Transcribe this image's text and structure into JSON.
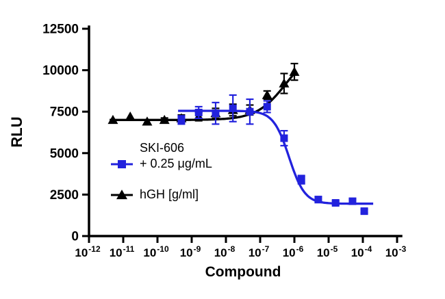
{
  "chart_data": {
    "type": "line",
    "title": "",
    "xlabel": "Compound",
    "ylabel": "RLU",
    "x_scale": "log10",
    "xlim_exp": [
      -12,
      -3
    ],
    "ylim": [
      0,
      12500
    ],
    "yticks": [
      0,
      2500,
      5000,
      7500,
      10000,
      12500
    ],
    "xticks_exp": [
      -12,
      -11,
      -10,
      -9,
      -8,
      -7,
      -6,
      -5,
      -4,
      -3
    ],
    "axis_color": "#000000",
    "grid": false,
    "legend_position": "inside-left",
    "series": [
      {
        "name": "SKI-606 + 0.25 μg/mL",
        "color": "#2222DD",
        "marker": "square",
        "points": [
          {
            "x": 5e-10,
            "y": 7000,
            "err": 250
          },
          {
            "x": 1.6e-09,
            "y": 7450,
            "err": 350
          },
          {
            "x": 5e-09,
            "y": 7400,
            "err": 650
          },
          {
            "x": 1.6e-08,
            "y": 7700,
            "err": 800
          },
          {
            "x": 5e-08,
            "y": 7500,
            "err": 750
          },
          {
            "x": 1.6e-07,
            "y": 7800,
            "err": 350
          },
          {
            "x": 5e-07,
            "y": 5900,
            "err": 450
          },
          {
            "x": 1.6e-06,
            "y": 3400,
            "err": 250
          },
          {
            "x": 5e-06,
            "y": 2200,
            "err": 180
          },
          {
            "x": 1.6e-05,
            "y": 2000,
            "err": 120
          },
          {
            "x": 5e-05,
            "y": 2100,
            "err": 130
          },
          {
            "x": 0.00011,
            "y": 1500,
            "err": 110
          }
        ],
        "fit": {
          "top": 7550,
          "bottom": 1950,
          "ec50": 7e-07,
          "hill": 1.9,
          "xmin": 4e-10,
          "xmax": 0.0002
        }
      },
      {
        "name": "hGH [g/ml]",
        "color": "#000000",
        "marker": "triangle",
        "points": [
          {
            "x": 5e-12,
            "y": 7000,
            "err": 0
          },
          {
            "x": 1.6e-11,
            "y": 7200,
            "err": 0
          },
          {
            "x": 5e-11,
            "y": 6900,
            "err": 0
          },
          {
            "x": 1.6e-10,
            "y": 7000,
            "err": 120
          },
          {
            "x": 5e-10,
            "y": 7100,
            "err": 200
          },
          {
            "x": 1.6e-09,
            "y": 7200,
            "err": 250
          },
          {
            "x": 5e-09,
            "y": 7400,
            "err": 300
          },
          {
            "x": 1.6e-08,
            "y": 7600,
            "err": 350
          },
          {
            "x": 5e-08,
            "y": 7600,
            "err": 300
          },
          {
            "x": 1.6e-07,
            "y": 8500,
            "err": 250
          },
          {
            "x": 5e-07,
            "y": 9200,
            "err": 600
          },
          {
            "x": 1e-06,
            "y": 9900,
            "err": 500
          }
        ],
        "fit": {
          "top": 11500,
          "bottom": 7000,
          "ec50": 6e-07,
          "hill": -1.0,
          "xmin": 4e-12,
          "xmax": 1.05e-06
        }
      }
    ],
    "legend": [
      {
        "lines": [
          "SKI-606",
          "+ 0.25 μg/mL"
        ],
        "marker": "square",
        "color": "#2222DD"
      },
      {
        "lines": [
          "hGH [g/ml]",
          ""
        ],
        "marker": "triangle",
        "color": "#000000"
      }
    ]
  }
}
